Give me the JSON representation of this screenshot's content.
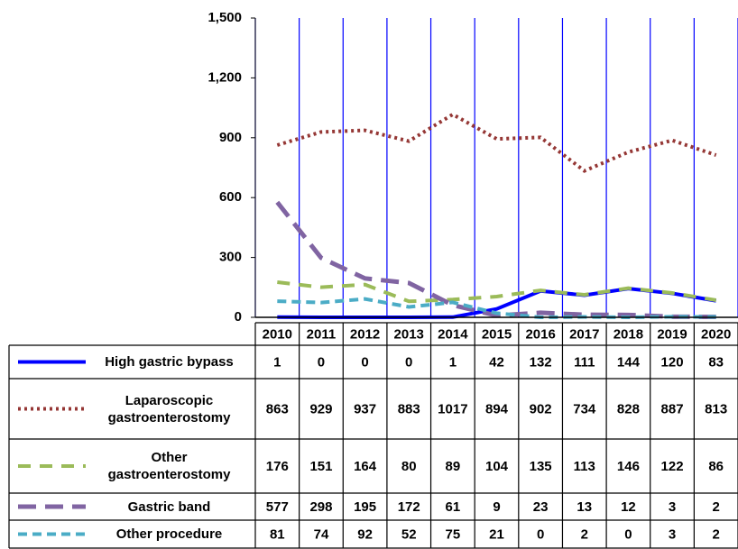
{
  "chart_data": {
    "type": "line",
    "categories": [
      "2010",
      "2011",
      "2012",
      "2013",
      "2014",
      "2015",
      "2016",
      "2017",
      "2018",
      "2019",
      "2020"
    ],
    "ylim": [
      0,
      1500
    ],
    "yticks": [
      0,
      300,
      600,
      900,
      {
        "value": 1200,
        "label": "1,200"
      },
      {
        "value": 1500,
        "label": "1,500"
      }
    ],
    "series": [
      {
        "name": "High gastric bypass",
        "color": "#0000ff",
        "dash": "none",
        "values": [
          1,
          0,
          0,
          0,
          1,
          42,
          132,
          111,
          144,
          120,
          83
        ]
      },
      {
        "name": "Laparoscopic gastroenterostomy",
        "color": "#953735",
        "dash": "3 4",
        "values": [
          863,
          929,
          937,
          883,
          1017,
          894,
          902,
          734,
          828,
          887,
          813
        ]
      },
      {
        "name": "Other gastroenterostomy",
        "color": "#9bbb59",
        "dash": "14 10",
        "values": [
          176,
          151,
          164,
          80,
          89,
          104,
          135,
          113,
          146,
          122,
          86
        ]
      },
      {
        "name": "Gastric band",
        "color": "#8064a2",
        "dash": "20 10",
        "values": [
          577,
          298,
          195,
          172,
          61,
          9,
          23,
          13,
          12,
          3,
          2
        ]
      },
      {
        "name": "Other procedure",
        "color": "#4bacc6",
        "dash": "10 6",
        "values": [
          81,
          74,
          92,
          52,
          75,
          21,
          0,
          2,
          0,
          3,
          2
        ]
      }
    ]
  }
}
